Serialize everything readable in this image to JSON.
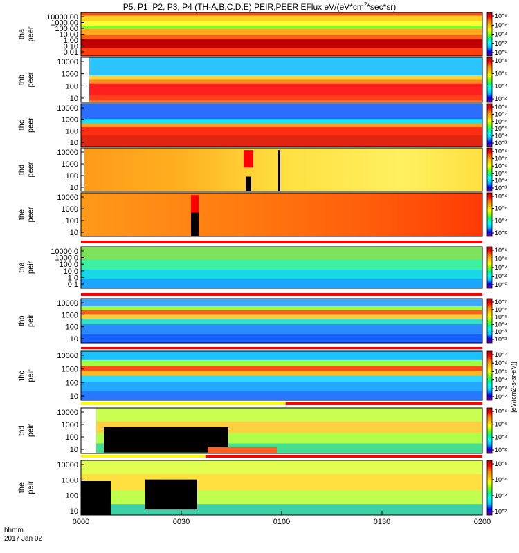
{
  "chart_data": {
    "type": "heatmap",
    "title": "P5, P1, P2, P3, P4 (TH-A,B,C,D,E) PEIR,PEER EFlux eV/(eV*cm2*sec*sr)",
    "title_main": "P5, P1, P2, P3, P4 (TH-A,B,C,D,E) PEIR,PEER EFlux eV/(eV*cm",
    "title_sup": "2",
    "title_tail": "*sec*sr)",
    "x_axis": {
      "label_line1": "hhmm",
      "label_line2": "2017 Jan 02",
      "ticks": [
        {
          "value": 0,
          "label": "0000"
        },
        {
          "value": 30,
          "label": "0030"
        },
        {
          "value": 60,
          "label": "0100"
        },
        {
          "value": 90,
          "label": "0130"
        },
        {
          "value": 120,
          "label": "0200"
        }
      ],
      "range_minutes": [
        0,
        120
      ]
    },
    "colorbar_label": "[eV/(cm2-s-sr-eV)]",
    "panels": [
      {
        "probe": "tha",
        "species": "peer",
        "yticks": [
          "10000.00",
          "1000.00",
          "100.00",
          "10.00",
          "1.00",
          "0.10",
          "0.01"
        ],
        "cticks": [
          "10⁸",
          "10⁶",
          "10⁴",
          "10²",
          "10⁰"
        ]
      },
      {
        "probe": "thb",
        "species": "peer",
        "yticks": [
          "10000",
          "1000",
          "100",
          "10"
        ],
        "cticks": [
          "10⁸",
          "10⁶",
          "10⁴",
          "10²"
        ]
      },
      {
        "probe": "thc",
        "species": "peer",
        "yticks": [
          "10000",
          "1000",
          "100",
          "10"
        ],
        "cticks": [
          "10⁸",
          "10⁷",
          "10⁶",
          "10⁵",
          "10⁴",
          "10³"
        ]
      },
      {
        "probe": "thd",
        "species": "peer",
        "yticks": [
          "10000",
          "1000",
          "100",
          "10"
        ],
        "cticks": [
          "10⁸",
          "10⁷",
          "10⁶",
          "10⁵",
          "10⁴",
          "10³"
        ]
      },
      {
        "probe": "the",
        "species": "peer",
        "yticks": [
          "10000",
          "1000",
          "100",
          "10"
        ],
        "cticks": [
          "10⁸",
          "10⁶",
          "10⁴",
          "10²"
        ]
      },
      {
        "probe": "tha",
        "species": "peir",
        "yticks": [
          "10000.0",
          "1000.0",
          "100.0",
          "10.0",
          "1.0",
          "0.1"
        ],
        "cticks": [
          "10⁸",
          "10⁶",
          "10⁴",
          "10²",
          "10⁰"
        ]
      },
      {
        "probe": "thb",
        "species": "peir",
        "yticks": [
          "10000",
          "1000",
          "100",
          "10"
        ],
        "cticks": [
          "10⁷",
          "10⁶",
          "10⁵",
          "10⁴",
          "10³",
          "10²"
        ]
      },
      {
        "probe": "thc",
        "species": "peir",
        "yticks": [
          "10000",
          "1000",
          "100",
          "10"
        ],
        "cticks": [
          "10⁷",
          "10⁶",
          "10⁵",
          "10⁴",
          "10³",
          "10²"
        ]
      },
      {
        "probe": "thd",
        "species": "peir",
        "yticks": [
          "10000",
          "1000",
          "100",
          "10"
        ],
        "cticks": [
          "10⁸",
          "10⁶",
          "10⁴",
          "10²"
        ]
      },
      {
        "probe": "the",
        "species": "peir",
        "yticks": [
          "10000",
          "1000",
          "100",
          "10"
        ],
        "cticks": [
          "10⁸",
          "10⁶",
          "10⁴",
          "10²"
        ]
      }
    ],
    "colors": {
      "background": "#ffffff",
      "data_gap": "#000000",
      "flag_red": "#ff0000",
      "flag_yellow": "#ffff00",
      "colormap": [
        "#7f007f",
        "#0000ff",
        "#00bfff",
        "#00ffff",
        "#00ff7f",
        "#7fff00",
        "#ffff00",
        "#ffbf00",
        "#ff7f00",
        "#ff0000",
        "#b40000"
      ]
    }
  }
}
